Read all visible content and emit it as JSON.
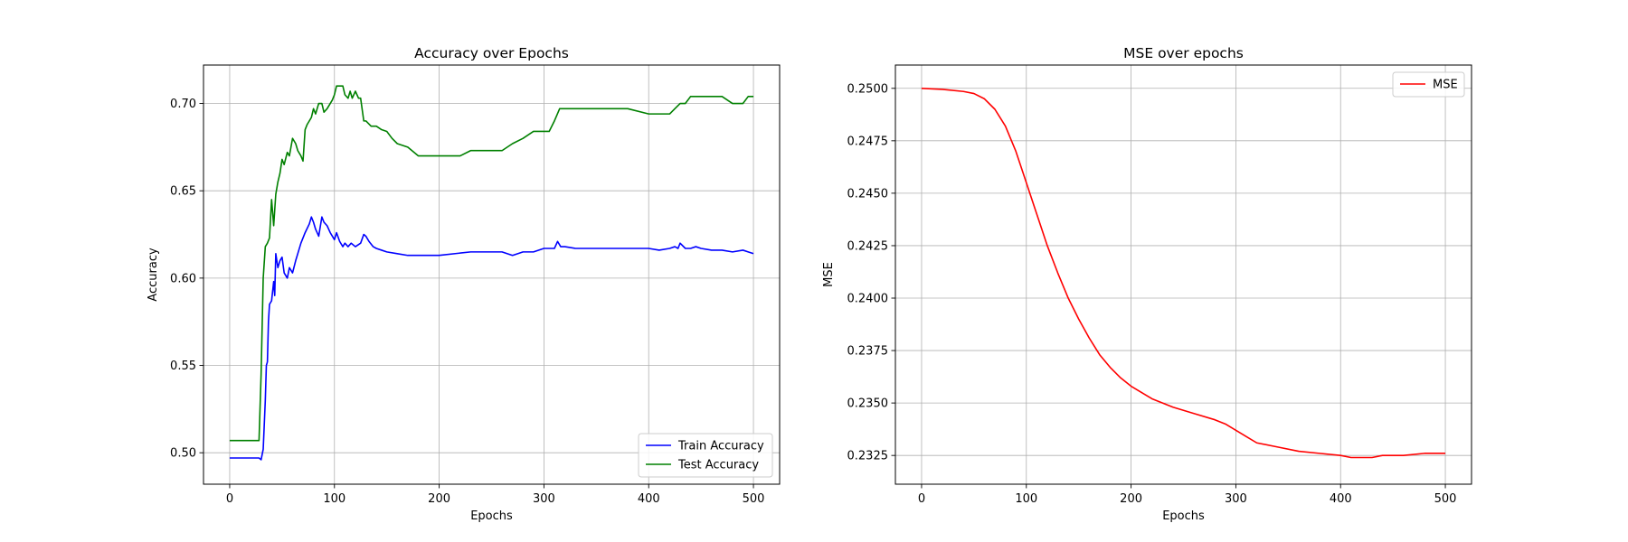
{
  "chart_data": [
    {
      "type": "line",
      "title": "Accuracy over Epochs",
      "xlabel": "Epochs",
      "ylabel": "Accuracy",
      "xlim": [
        -25,
        525
      ],
      "ylim": [
        0.482,
        0.722
      ],
      "xticks": [
        0,
        100,
        200,
        300,
        400,
        500
      ],
      "xtick_labels": [
        "0",
        "100",
        "200",
        "300",
        "400",
        "500"
      ],
      "yticks": [
        0.5,
        0.55,
        0.6,
        0.65,
        0.7
      ],
      "ytick_labels": [
        "0.50",
        "0.55",
        "0.60",
        "0.65",
        "0.70"
      ],
      "grid": true,
      "legend_position": "lower-right",
      "series": [
        {
          "name": "Train Accuracy",
          "color": "#0000ff",
          "x": [
            0,
            10,
            20,
            28,
            30,
            32,
            34,
            35,
            36,
            37,
            38,
            40,
            42,
            43,
            44,
            46,
            48,
            50,
            52,
            55,
            57,
            60,
            63,
            65,
            68,
            72,
            76,
            78,
            80,
            82,
            85,
            88,
            90,
            93,
            96,
            98,
            100,
            102,
            105,
            108,
            110,
            113,
            116,
            120,
            125,
            128,
            130,
            133,
            137,
            140,
            145,
            150,
            160,
            170,
            180,
            190,
            200,
            230,
            260,
            270,
            280,
            290,
            300,
            305,
            310,
            313,
            316,
            320,
            330,
            340,
            360,
            380,
            400,
            410,
            420,
            425,
            428,
            430,
            435,
            440,
            445,
            450,
            460,
            470,
            480,
            490,
            495,
            500
          ],
          "y": [
            0.497,
            0.497,
            0.497,
            0.497,
            0.496,
            0.502,
            0.53,
            0.55,
            0.552,
            0.575,
            0.585,
            0.587,
            0.598,
            0.59,
            0.614,
            0.606,
            0.61,
            0.612,
            0.603,
            0.6,
            0.606,
            0.603,
            0.61,
            0.614,
            0.62,
            0.626,
            0.631,
            0.635,
            0.632,
            0.628,
            0.624,
            0.635,
            0.632,
            0.63,
            0.626,
            0.624,
            0.622,
            0.626,
            0.621,
            0.618,
            0.62,
            0.618,
            0.62,
            0.618,
            0.62,
            0.625,
            0.624,
            0.621,
            0.618,
            0.617,
            0.616,
            0.615,
            0.614,
            0.613,
            0.613,
            0.613,
            0.613,
            0.615,
            0.615,
            0.613,
            0.615,
            0.615,
            0.617,
            0.617,
            0.617,
            0.621,
            0.618,
            0.618,
            0.617,
            0.617,
            0.617,
            0.617,
            0.617,
            0.616,
            0.617,
            0.618,
            0.617,
            0.62,
            0.617,
            0.617,
            0.618,
            0.617,
            0.616,
            0.616,
            0.615,
            0.616,
            0.615,
            0.614
          ]
        },
        {
          "name": "Test Accuracy",
          "color": "#008000",
          "x": [
            0,
            10,
            20,
            28,
            30,
            32,
            34,
            36,
            38,
            40,
            42,
            44,
            46,
            48,
            50,
            52,
            55,
            57,
            60,
            63,
            65,
            68,
            70,
            72,
            74,
            76,
            78,
            80,
            82,
            85,
            88,
            90,
            93,
            96,
            98,
            100,
            102,
            105,
            108,
            110,
            113,
            115,
            117,
            120,
            123,
            125,
            128,
            130,
            135,
            140,
            145,
            150,
            155,
            160,
            170,
            180,
            190,
            200,
            220,
            230,
            250,
            260,
            270,
            280,
            290,
            300,
            305,
            310,
            315,
            320,
            340,
            360,
            380,
            400,
            410,
            420,
            425,
            430,
            435,
            440,
            445,
            450,
            460,
            470,
            480,
            490,
            495,
            500
          ],
          "y": [
            0.507,
            0.507,
            0.507,
            0.507,
            0.545,
            0.6,
            0.618,
            0.62,
            0.623,
            0.645,
            0.63,
            0.648,
            0.655,
            0.66,
            0.668,
            0.665,
            0.672,
            0.67,
            0.68,
            0.677,
            0.673,
            0.67,
            0.667,
            0.685,
            0.688,
            0.69,
            0.692,
            0.697,
            0.694,
            0.7,
            0.7,
            0.695,
            0.697,
            0.7,
            0.702,
            0.705,
            0.71,
            0.71,
            0.71,
            0.705,
            0.703,
            0.707,
            0.703,
            0.707,
            0.703,
            0.703,
            0.69,
            0.69,
            0.687,
            0.687,
            0.685,
            0.684,
            0.68,
            0.677,
            0.675,
            0.67,
            0.67,
            0.67,
            0.67,
            0.673,
            0.673,
            0.673,
            0.677,
            0.68,
            0.684,
            0.684,
            0.684,
            0.69,
            0.697,
            0.697,
            0.697,
            0.697,
            0.697,
            0.694,
            0.694,
            0.694,
            0.697,
            0.7,
            0.7,
            0.704,
            0.704,
            0.704,
            0.704,
            0.704,
            0.7,
            0.7,
            0.704,
            0.704
          ]
        }
      ]
    },
    {
      "type": "line",
      "title": "MSE over epochs",
      "xlabel": "Epochs",
      "ylabel": "MSE",
      "xlim": [
        -25,
        525
      ],
      "ylim": [
        0.23113,
        0.25111
      ],
      "xticks": [
        0,
        100,
        200,
        300,
        400,
        500
      ],
      "xtick_labels": [
        "0",
        "100",
        "200",
        "300",
        "400",
        "500"
      ],
      "yticks": [
        0.2325,
        0.235,
        0.2375,
        0.24,
        0.2425,
        0.245,
        0.2475,
        0.25
      ],
      "ytick_labels": [
        "0.2325",
        "0.2350",
        "0.2375",
        "0.2400",
        "0.2425",
        "0.2450",
        "0.2475",
        "0.2500"
      ],
      "grid": true,
      "legend_position": "upper-right",
      "series": [
        {
          "name": "MSE",
          "color": "#ff0000",
          "x": [
            0,
            20,
            40,
            50,
            60,
            70,
            80,
            90,
            100,
            110,
            120,
            130,
            140,
            150,
            160,
            170,
            180,
            190,
            200,
            220,
            240,
            260,
            280,
            290,
            300,
            310,
            320,
            340,
            360,
            380,
            400,
            410,
            420,
            430,
            440,
            460,
            480,
            500
          ],
          "y": [
            0.25,
            0.24995,
            0.24985,
            0.24975,
            0.2495,
            0.249,
            0.2482,
            0.247,
            0.2455,
            0.244,
            0.2425,
            0.2412,
            0.24,
            0.239,
            0.2381,
            0.2373,
            0.2367,
            0.2362,
            0.2358,
            0.2352,
            0.2348,
            0.2345,
            0.2342,
            0.234,
            0.2337,
            0.2334,
            0.2331,
            0.2329,
            0.2327,
            0.2326,
            0.2325,
            0.2324,
            0.2324,
            0.2324,
            0.2325,
            0.2325,
            0.2326,
            0.2326
          ]
        }
      ]
    }
  ]
}
